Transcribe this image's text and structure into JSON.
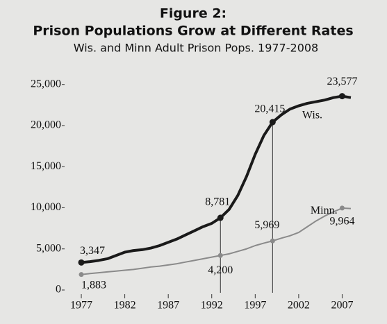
{
  "chart_data": {
    "type": "line",
    "title": "Figure 2:",
    "subtitle": "Prison Populations Grow at Different Rates",
    "caption": "Wis. and Minn Adult Prison Pops. 1977-2008",
    "x": [
      1977,
      1978,
      1979,
      1980,
      1981,
      1982,
      1983,
      1984,
      1985,
      1986,
      1987,
      1988,
      1989,
      1990,
      1991,
      1992,
      1993,
      1994,
      1995,
      1996,
      1997,
      1998,
      1999,
      2000,
      2001,
      2002,
      2003,
      2004,
      2005,
      2006,
      2007,
      2008
    ],
    "series": [
      {
        "name": "Wis.",
        "color": "#1a1a1a",
        "values": [
          3347,
          3450,
          3600,
          3800,
          4200,
          4600,
          4800,
          4900,
          5100,
          5400,
          5800,
          6200,
          6700,
          7200,
          7700,
          8100,
          8781,
          9800,
          11500,
          13800,
          16500,
          18800,
          20415,
          21300,
          22000,
          22400,
          22700,
          22900,
          23100,
          23400,
          23577,
          23400
        ],
        "value_labels": [
          "3,347",
          null,
          null,
          null,
          null,
          null,
          null,
          null,
          null,
          null,
          null,
          null,
          null,
          null,
          null,
          null,
          "8,781",
          null,
          null,
          null,
          null,
          null,
          "20,415",
          null,
          null,
          null,
          null,
          null,
          null,
          null,
          "23,577",
          null
        ]
      },
      {
        "name": "Minn.",
        "color": "#8a8a8a",
        "values": [
          1883,
          2000,
          2100,
          2200,
          2300,
          2400,
          2500,
          2650,
          2800,
          2900,
          3050,
          3200,
          3400,
          3600,
          3800,
          4000,
          4200,
          4400,
          4700,
          5000,
          5400,
          5700,
          5969,
          6300,
          6600,
          7000,
          7700,
          8400,
          9000,
          9500,
          9964,
          9900
        ],
        "value_labels": [
          "1,883",
          null,
          null,
          null,
          null,
          null,
          null,
          null,
          null,
          null,
          null,
          null,
          null,
          null,
          null,
          null,
          "4,200",
          null,
          null,
          null,
          null,
          null,
          "5,969",
          null,
          null,
          null,
          null,
          null,
          null,
          null,
          "9,964",
          null
        ]
      }
    ],
    "xlim": [
      1975,
      2010
    ],
    "xticks": [
      1977,
      1982,
      1987,
      1992,
      1997,
      2002,
      2007
    ],
    "ylim": [
      0,
      27000
    ],
    "yticks": [
      0,
      {
        "value": 5000,
        "label": "5,000"
      },
      {
        "value": 10000,
        "label": "10,000"
      },
      {
        "value": 15000,
        "label": "15,000"
      },
      {
        "value": 20000,
        "label": "20,000"
      },
      {
        "value": 25000,
        "label": "25,000"
      }
    ]
  }
}
